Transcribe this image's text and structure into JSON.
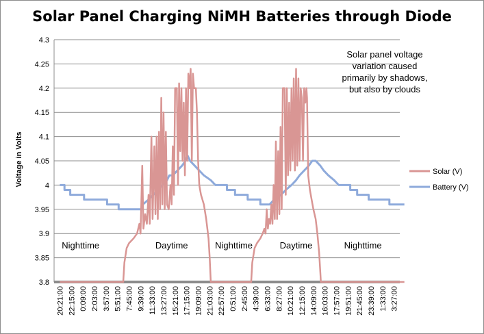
{
  "chart_data": {
    "type": "line",
    "title": "Solar Panel Charging NiMH Batteries through Diode",
    "ylabel": "Voltage in Volts",
    "xlabel": "",
    "ylim": [
      3.8,
      4.3
    ],
    "yticks": [
      "3.8",
      "3.85",
      "3.9",
      "3.95",
      "4",
      "4.05",
      "4.1",
      "4.15",
      "4.2",
      "4.25",
      "4.3"
    ],
    "x_categories": [
      "20:21:00",
      "22:15:00",
      "0:09:00",
      "2:03:00",
      "3:57:00",
      "5:51:00",
      "7:45:00",
      "9:39:00",
      "11:33:00",
      "13:27:00",
      "15:21:00",
      "17:15:00",
      "19:09:00",
      "21:03:00",
      "22:57:00",
      "0:51:00",
      "2:45:00",
      "4:39:00",
      "6:33:00",
      "8:27:00",
      "10:21:00",
      "12:15:00",
      "14:09:00",
      "16:03:00",
      "17:57:00",
      "19:51:00",
      "21:45:00",
      "23:39:00",
      "1:33:00",
      "3:27:00"
    ],
    "grid": true,
    "legend_position": "right",
    "series": [
      {
        "name": "Solar (V)",
        "color": "#d99694",
        "points": [
          [
            0,
            3.8
          ],
          [
            5.5,
            3.8
          ],
          [
            5.6,
            3.84
          ],
          [
            5.8,
            3.87
          ],
          [
            6.0,
            3.88
          ],
          [
            6.4,
            3.89
          ],
          [
            6.7,
            3.9
          ],
          [
            6.9,
            3.92
          ],
          [
            7.0,
            3.9
          ],
          [
            7.15,
            4.04
          ],
          [
            7.25,
            3.91
          ],
          [
            7.4,
            3.94
          ],
          [
            7.55,
            3.92
          ],
          [
            7.7,
            3.98
          ],
          [
            7.8,
            3.92
          ],
          [
            7.95,
            4.1
          ],
          [
            8.05,
            3.93
          ],
          [
            8.2,
            4.08
          ],
          [
            8.3,
            3.94
          ],
          [
            8.4,
            4.1
          ],
          [
            8.5,
            3.93
          ],
          [
            8.6,
            4.11
          ],
          [
            8.7,
            3.95
          ],
          [
            8.8,
            4.18
          ],
          [
            8.9,
            3.96
          ],
          [
            9.0,
            4.15
          ],
          [
            9.1,
            3.95
          ],
          [
            9.2,
            4.11
          ],
          [
            9.3,
            3.96
          ],
          [
            9.45,
            3.95
          ],
          [
            9.6,
            4.0
          ],
          [
            9.7,
            3.96
          ],
          [
            9.8,
            4.08
          ],
          [
            9.9,
            3.98
          ],
          [
            10.0,
            4.2
          ],
          [
            10.15,
            4.2
          ],
          [
            10.25,
            4.0
          ],
          [
            10.35,
            4.21
          ],
          [
            10.45,
            4.07
          ],
          [
            10.55,
            4.2
          ],
          [
            10.65,
            4.05
          ],
          [
            10.75,
            4.17
          ],
          [
            10.85,
            4.02
          ],
          [
            10.95,
            4.2
          ],
          [
            11.05,
            4.05
          ],
          [
            11.15,
            4.23
          ],
          [
            11.25,
            4.2
          ],
          [
            11.35,
            4.24
          ],
          [
            11.45,
            4.05
          ],
          [
            11.55,
            4.23
          ],
          [
            11.65,
            4.2
          ],
          [
            11.8,
            4.2
          ],
          [
            11.9,
            4.15
          ],
          [
            12.0,
            4.05
          ],
          [
            12.1,
            4.0
          ],
          [
            12.25,
            3.98
          ],
          [
            12.5,
            3.96
          ],
          [
            12.7,
            3.93
          ],
          [
            12.9,
            3.89
          ],
          [
            13.0,
            3.85
          ],
          [
            13.1,
            3.8
          ],
          [
            13.4,
            3.8
          ],
          [
            16.0,
            3.8
          ],
          [
            16.6,
            3.8
          ],
          [
            16.7,
            3.84
          ],
          [
            16.9,
            3.87
          ],
          [
            17.1,
            3.88
          ],
          [
            17.4,
            3.89
          ],
          [
            17.6,
            3.9
          ],
          [
            17.75,
            3.91
          ],
          [
            17.85,
            3.9
          ],
          [
            17.95,
            3.95
          ],
          [
            18.05,
            3.91
          ],
          [
            18.15,
            3.93
          ],
          [
            18.25,
            3.92
          ],
          [
            18.35,
            3.96
          ],
          [
            18.45,
            3.92
          ],
          [
            18.55,
            4.0
          ],
          [
            18.65,
            3.93
          ],
          [
            18.75,
            4.09
          ],
          [
            18.85,
            3.93
          ],
          [
            18.95,
            4.07
          ],
          [
            19.05,
            3.94
          ],
          [
            19.15,
            4.12
          ],
          [
            19.25,
            3.95
          ],
          [
            19.35,
            4.2
          ],
          [
            19.5,
            4.2
          ],
          [
            19.6,
            3.98
          ],
          [
            19.7,
            4.2
          ],
          [
            19.8,
            4.02
          ],
          [
            19.9,
            4.17
          ],
          [
            20.0,
            4.03
          ],
          [
            20.1,
            4.2
          ],
          [
            20.2,
            4.05
          ],
          [
            20.3,
            4.22
          ],
          [
            20.4,
            4.03
          ],
          [
            20.5,
            4.24
          ],
          [
            20.6,
            4.04
          ],
          [
            20.7,
            4.22
          ],
          [
            20.8,
            4.05
          ],
          [
            20.9,
            4.2
          ],
          [
            21.0,
            4.18
          ],
          [
            21.1,
            4.05
          ],
          [
            21.2,
            4.2
          ],
          [
            21.3,
            4.17
          ],
          [
            21.4,
            4.2
          ],
          [
            21.45,
            4.18
          ],
          [
            21.55,
            4.02
          ],
          [
            21.7,
            3.99
          ],
          [
            21.85,
            3.97
          ],
          [
            22.0,
            3.95
          ],
          [
            22.2,
            3.93
          ],
          [
            22.35,
            3.9
          ],
          [
            22.5,
            3.86
          ],
          [
            22.6,
            3.82
          ],
          [
            22.65,
            3.8
          ],
          [
            29.9,
            3.8
          ]
        ]
      },
      {
        "name": "Battery (V)",
        "color": "#8eaadb",
        "points": [
          [
            0,
            4.0
          ],
          [
            0.4,
            4.0
          ],
          [
            0.4,
            3.99
          ],
          [
            0.9,
            3.99
          ],
          [
            0.9,
            3.98
          ],
          [
            2.1,
            3.98
          ],
          [
            2.1,
            3.97
          ],
          [
            4.1,
            3.97
          ],
          [
            4.1,
            3.96
          ],
          [
            5.1,
            3.96
          ],
          [
            5.1,
            3.95
          ],
          [
            7.1,
            3.95
          ],
          [
            7.2,
            3.96
          ],
          [
            7.7,
            3.97
          ],
          [
            8.1,
            3.98
          ],
          [
            8.5,
            3.99
          ],
          [
            8.9,
            4.0
          ],
          [
            9.3,
            4.01
          ],
          [
            9.5,
            4.02
          ],
          [
            9.8,
            4.02
          ],
          [
            10.2,
            4.03
          ],
          [
            10.6,
            4.04
          ],
          [
            10.9,
            4.05
          ],
          [
            11.1,
            4.06
          ],
          [
            11.3,
            4.05
          ],
          [
            11.7,
            4.04
          ],
          [
            12.1,
            4.03
          ],
          [
            12.5,
            4.02
          ],
          [
            13.1,
            4.01
          ],
          [
            13.5,
            4.0
          ],
          [
            14.5,
            4.0
          ],
          [
            14.5,
            3.99
          ],
          [
            15.2,
            3.99
          ],
          [
            15.2,
            3.98
          ],
          [
            16.3,
            3.98
          ],
          [
            16.3,
            3.97
          ],
          [
            17.4,
            3.97
          ],
          [
            17.4,
            3.96
          ],
          [
            18.2,
            3.96
          ],
          [
            18.6,
            3.97
          ],
          [
            19.2,
            3.98
          ],
          [
            19.6,
            3.99
          ],
          [
            20.1,
            4.0
          ],
          [
            20.5,
            4.01
          ],
          [
            20.8,
            4.02
          ],
          [
            21.2,
            4.03
          ],
          [
            21.6,
            4.04
          ],
          [
            21.9,
            4.05
          ],
          [
            22.2,
            4.05
          ],
          [
            22.6,
            4.04
          ],
          [
            22.9,
            4.03
          ],
          [
            23.3,
            4.02
          ],
          [
            23.8,
            4.01
          ],
          [
            24.2,
            4.0
          ],
          [
            25.2,
            4.0
          ],
          [
            25.2,
            3.99
          ],
          [
            25.8,
            3.99
          ],
          [
            25.8,
            3.98
          ],
          [
            26.8,
            3.98
          ],
          [
            26.8,
            3.97
          ],
          [
            28.6,
            3.97
          ],
          [
            28.6,
            3.96
          ],
          [
            29.9,
            3.96
          ]
        ]
      }
    ],
    "annotations": [
      {
        "text": "Nighttime",
        "x": 1.8,
        "y": 3.875
      },
      {
        "text": "Daytime",
        "x": 9.7,
        "y": 3.875
      },
      {
        "text": "Nighttime",
        "x": 15.1,
        "y": 3.875
      },
      {
        "text": "Daytime",
        "x": 20.5,
        "y": 3.875
      },
      {
        "text": "Nighttime",
        "x": 26.3,
        "y": 3.875
      }
    ],
    "note_lines": [
      "Solar panel voltage",
      "variation caused",
      "primarily by shadows,",
      "but also by clouds"
    ]
  }
}
